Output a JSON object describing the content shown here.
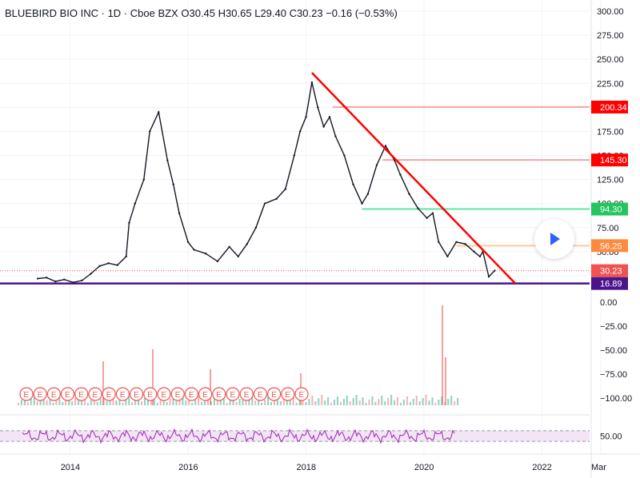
{
  "header": {
    "title": "BLUEBIRD BIO INC · 1D · Cboe BZX",
    "open_label": "O",
    "open": "30.45",
    "high_label": "H",
    "high": "30.65",
    "low_label": "L",
    "low": "29.40",
    "close_label": "C",
    "close": "30.23",
    "change": "−0.16 (−0.53%)"
  },
  "colors": {
    "up": "#089981",
    "down": "#ef5350",
    "rsi": "#9c27b0",
    "rsi_band": "#f3e5f5",
    "trend": "#ff0000",
    "support": "#4a148c",
    "price_tag": "#ef5350"
  },
  "chart_data": [
    {
      "type": "line",
      "name": "price",
      "x_ticks": [
        "2014",
        "2016",
        "2018",
        "2020",
        "2022",
        "Mar"
      ],
      "y_ticks": [
        "300.00",
        "275.00",
        "250.00",
        "225.00",
        "200.00",
        "175.00",
        "150.00",
        "125.00",
        "100.00",
        "75.00",
        "50.00",
        "25.00"
      ],
      "ylim": [
        0,
        300
      ],
      "x": [
        2013.45,
        2013.6,
        2013.75,
        2013.9,
        2014.05,
        2014.2,
        2014.35,
        2014.5,
        2014.65,
        2014.8,
        2014.95,
        2015.0,
        2015.1,
        2015.25,
        2015.35,
        2015.5,
        2015.65,
        2015.75,
        2015.85,
        2016.0,
        2016.1,
        2016.3,
        2016.5,
        2016.7,
        2016.85,
        2017.0,
        2017.15,
        2017.3,
        2017.5,
        2017.65,
        2017.8,
        2017.9,
        2018.0,
        2018.1,
        2018.2,
        2018.3,
        2018.4,
        2018.5,
        2018.65,
        2018.8,
        2018.95,
        2019.05,
        2019.2,
        2019.35,
        2019.5,
        2019.6,
        2019.75,
        2019.9,
        2020.05,
        2020.15,
        2020.25,
        2020.4,
        2020.55,
        2020.7,
        2020.85,
        2020.95,
        2021.0,
        2021.1,
        2021.2
      ],
      "y": [
        22,
        23,
        19,
        21,
        18,
        20,
        27,
        35,
        38,
        36,
        45,
        80,
        100,
        125,
        175,
        195,
        145,
        120,
        90,
        60,
        52,
        48,
        40,
        55,
        45,
        58,
        75,
        100,
        105,
        115,
        150,
        175,
        190,
        226,
        200,
        180,
        190,
        170,
        150,
        120,
        100,
        110,
        140,
        160,
        145,
        130,
        110,
        95,
        85,
        90,
        60,
        45,
        60,
        58,
        50,
        45,
        50,
        24,
        30.23
      ],
      "price_labels": [
        "200.34",
        "145.30",
        "94.30",
        "56.25",
        "30.23",
        "16.89"
      ],
      "trend_line": {
        "from": [
          2018.1,
          236
        ],
        "to": [
          2021.55,
          16.89
        ]
      },
      "horizontal_levels": [
        {
          "value": 200.34,
          "label": "200.34",
          "color": "#f4a3a3",
          "tag": "#ff0000"
        },
        {
          "value": 145.3,
          "label": "145.30",
          "color": "#f4a3a3",
          "tag": "#ff0000"
        },
        {
          "value": 94.3,
          "label": "94.30",
          "color": "#5ee3a8",
          "tag": "#22c55e"
        },
        {
          "value": 56.25,
          "label": "56.25",
          "color": "#ffc9a0",
          "tag": "#ff8a3d"
        },
        {
          "value": 16.89,
          "label": "16.89",
          "color": "#4a148c",
          "tag": "#4a148c"
        }
      ],
      "last_price": 30.23
    },
    {
      "type": "bar",
      "name": "volume",
      "y_ticks": [
        "0.00",
        "−25.00",
        "−50.00",
        "−75.00",
        "−100.00"
      ],
      "earnings_marker": "E",
      "earnings_count": 21
    },
    {
      "type": "line",
      "name": "RSI",
      "y_ticks": [
        "50.00"
      ],
      "ylim": [
        0,
        100
      ],
      "band": [
        30,
        70
      ]
    }
  ]
}
